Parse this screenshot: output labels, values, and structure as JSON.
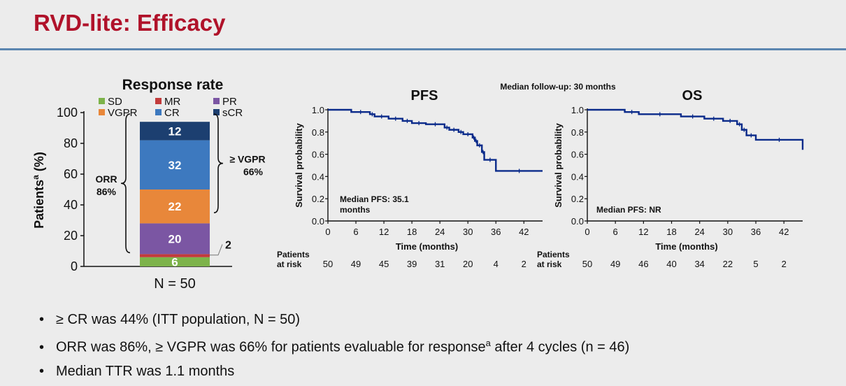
{
  "page": {
    "title": "RVD-lite: Efficacy",
    "bullets": [
      {
        "text": "≥ CR was 44% (ITT population, N = 50)"
      },
      {
        "text": "ORR was 86%, ≥ VGPR was 66% for patients evaluable for response",
        "sup": "a",
        "tail": " after 4 cycles (n = 46)"
      },
      {
        "text": "Median TTR was 1.1 months"
      }
    ]
  },
  "chart_data": [
    {
      "type": "bar",
      "stacked": true,
      "title": "Response rate",
      "ylabel": "Patients",
      "ylabel_sup": "a",
      "ylabel_unit": "(%)",
      "xlabel": "N = 50",
      "ylim": [
        0,
        100
      ],
      "yticks": [
        0,
        20,
        40,
        60,
        80,
        100
      ],
      "legend_placement": "top",
      "series": [
        {
          "name": "SD",
          "value": 6,
          "label": "6",
          "color": "#7db34a"
        },
        {
          "name": "MR",
          "value": 2,
          "label": "2",
          "color": "#c23b3b"
        },
        {
          "name": "PR",
          "value": 20,
          "label": "20",
          "color": "#7b56a3"
        },
        {
          "name": "VGPR",
          "value": 22,
          "label": "22",
          "color": "#e8873a"
        },
        {
          "name": "CR",
          "value": 32,
          "label": "32",
          "color": "#3d79bf"
        },
        {
          "name": "sCR",
          "value": 12,
          "label": "12",
          "color": "#1c3f70"
        }
      ],
      "legend_order": [
        "SD",
        "MR",
        "PR",
        "VGPR",
        "CR",
        "sCR"
      ],
      "brackets": [
        {
          "label1": "ORR",
          "label2": "86%",
          "from": 8,
          "to": 100,
          "side": "left"
        },
        {
          "label1": "≥ VGPR",
          "label2": "66%",
          "from": 34,
          "to": 100,
          "side": "right"
        }
      ]
    },
    {
      "type": "line",
      "step": true,
      "title": "PFS",
      "xlabel": "Time (months)",
      "ylabel": "Survival probability",
      "xlim": [
        0,
        46
      ],
      "ylim": [
        0,
        1
      ],
      "xticks": [
        0,
        6,
        12,
        18,
        24,
        30,
        36,
        42
      ],
      "yticks": [
        "0.0",
        "0.2",
        "0.4",
        "0.6",
        "0.8",
        "1.0"
      ],
      "annotation": [
        "Median PFS: 35.1",
        "months"
      ],
      "risk_label": [
        "Patients",
        "at risk"
      ],
      "at_risk": [
        50,
        49,
        45,
        39,
        31,
        20,
        4,
        2
      ],
      "color": "#0a2a8a",
      "series": [
        {
          "x": [
            0,
            5,
            9,
            10,
            13,
            16,
            18,
            21,
            25,
            26,
            28,
            29,
            31,
            31.5,
            32,
            33,
            33.5,
            36,
            46
          ],
          "y": [
            1.0,
            0.98,
            0.96,
            0.94,
            0.92,
            0.9,
            0.88,
            0.87,
            0.84,
            0.82,
            0.8,
            0.78,
            0.75,
            0.72,
            0.68,
            0.62,
            0.55,
            0.45,
            0.45
          ]
        }
      ]
    },
    {
      "type": "line",
      "step": true,
      "title": "OS",
      "xlabel": "Time (months)",
      "ylabel": "Survival probability",
      "xlim": [
        0,
        46
      ],
      "ylim": [
        0,
        1
      ],
      "xticks": [
        0,
        6,
        12,
        18,
        24,
        30,
        36,
        42
      ],
      "yticks": [
        "0.0",
        "0.2",
        "0.4",
        "0.6",
        "0.8",
        "1.0"
      ],
      "annotation": [
        "Median PFS: NR"
      ],
      "risk_label": [
        "Patients",
        "at risk"
      ],
      "at_risk": [
        50,
        49,
        46,
        40,
        34,
        22,
        5,
        2
      ],
      "color": "#0a2a8a",
      "series": [
        {
          "x": [
            0,
            8,
            11,
            20,
            25,
            29,
            32,
            33,
            34,
            36,
            46
          ],
          "y": [
            1.0,
            0.98,
            0.96,
            0.94,
            0.92,
            0.9,
            0.87,
            0.82,
            0.77,
            0.73,
            0.64
          ]
        }
      ]
    }
  ],
  "followup_note": "Median follow-up: 30 months"
}
